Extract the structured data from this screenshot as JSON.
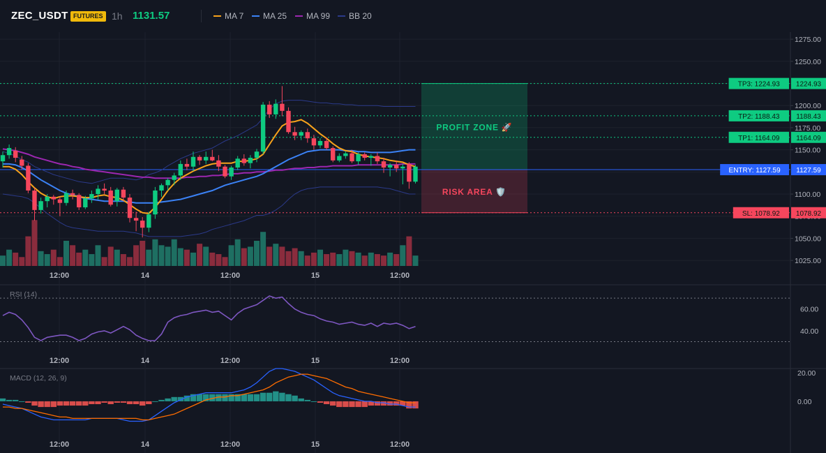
{
  "header": {
    "symbol": "ZEC_USDT",
    "badge": "FUTURES",
    "timeframe": "1h",
    "last_price": "1131.57",
    "indicators": [
      {
        "label": "MA 7",
        "color": "#f7a21b"
      },
      {
        "label": "MA 25",
        "color": "#3b82f6"
      },
      {
        "label": "MA 99",
        "color": "#9c27b0"
      },
      {
        "label": "BB 20",
        "color": "#2b3a8a"
      }
    ]
  },
  "price_axis": {
    "ticks": [
      "1275.00",
      "1250.00",
      "1225.00",
      "1200.00",
      "1175.00",
      "1150.00",
      "1125.00",
      "1100.00",
      "1075.00",
      "1050.00",
      "1025.00"
    ],
    "range": [
      1018,
      1283
    ]
  },
  "time_axis": {
    "labels": [
      "12:00",
      "14",
      "12:00",
      "15",
      "12:00"
    ]
  },
  "levels": [
    {
      "name": "tp3",
      "tag": "TP3: 1224.93",
      "value_label": "1224.93",
      "price": 1224.93,
      "color": "#0ecb81"
    },
    {
      "name": "tp2",
      "tag": "TP2: 1188.43",
      "value_label": "1188.43",
      "price": 1188.43,
      "color": "#0ecb81"
    },
    {
      "name": "tp1",
      "tag": "TP1: 1164.09",
      "value_label": "1164.09",
      "price": 1164.09,
      "color": "#0ecb81"
    },
    {
      "name": "entry",
      "tag": "ENTRY: 1127.59",
      "value_label": "1127.59",
      "price": 1127.59,
      "color": "#2962ff"
    },
    {
      "name": "sl",
      "tag": "SL: 1078.92",
      "value_label": "1078.92",
      "price": 1078.92,
      "color": "#f6465d"
    }
  ],
  "zones": {
    "profit_label": "PROFIT ZONE 🚀",
    "risk_label": "RISK AREA 🛡️"
  },
  "rsi": {
    "title": "RSI (14)",
    "ticks": [
      "60.00",
      "40.00"
    ],
    "range": [
      22,
      81
    ],
    "upper": 70,
    "lower": 30,
    "color": "#7e57c2"
  },
  "macd": {
    "title": "MACD (12, 26, 9)",
    "ticks": [
      "20.00",
      "0.00"
    ],
    "range": [
      -25,
      22
    ],
    "macd_color": "#2962ff",
    "signal_color": "#ff6d00"
  },
  "colors": {
    "up": "#0ecb81",
    "down": "#f6465d",
    "vol_up": "#1e6f62",
    "vol_down": "#8a2c3d"
  },
  "chart_data": {
    "type": "candlestick",
    "price": [
      {
        "o": 1137,
        "h": 1148,
        "l": 1130,
        "c": 1144
      },
      {
        "o": 1144,
        "h": 1156,
        "l": 1140,
        "c": 1152
      },
      {
        "o": 1149,
        "h": 1153,
        "l": 1136,
        "c": 1141
      },
      {
        "o": 1139,
        "h": 1143,
        "l": 1128,
        "c": 1132
      },
      {
        "o": 1132,
        "h": 1135,
        "l": 1101,
        "c": 1104
      },
      {
        "o": 1104,
        "h": 1107,
        "l": 1070,
        "c": 1082
      },
      {
        "o": 1082,
        "h": 1096,
        "l": 1078,
        "c": 1092
      },
      {
        "o": 1092,
        "h": 1100,
        "l": 1085,
        "c": 1097
      },
      {
        "o": 1097,
        "h": 1099,
        "l": 1088,
        "c": 1094
      },
      {
        "o": 1094,
        "h": 1097,
        "l": 1075,
        "c": 1090
      },
      {
        "o": 1090,
        "h": 1104,
        "l": 1087,
        "c": 1101
      },
      {
        "o": 1101,
        "h": 1105,
        "l": 1094,
        "c": 1099
      },
      {
        "o": 1099,
        "h": 1101,
        "l": 1082,
        "c": 1085
      },
      {
        "o": 1085,
        "h": 1098,
        "l": 1083,
        "c": 1095
      },
      {
        "o": 1095,
        "h": 1104,
        "l": 1090,
        "c": 1100
      },
      {
        "o": 1100,
        "h": 1110,
        "l": 1094,
        "c": 1106
      },
      {
        "o": 1106,
        "h": 1112,
        "l": 1100,
        "c": 1104
      },
      {
        "o": 1104,
        "h": 1108,
        "l": 1086,
        "c": 1088
      },
      {
        "o": 1092,
        "h": 1107,
        "l": 1086,
        "c": 1105
      },
      {
        "o": 1105,
        "h": 1108,
        "l": 1092,
        "c": 1096
      },
      {
        "o": 1096,
        "h": 1100,
        "l": 1068,
        "c": 1073
      },
      {
        "o": 1073,
        "h": 1080,
        "l": 1058,
        "c": 1070
      },
      {
        "o": 1070,
        "h": 1074,
        "l": 1051,
        "c": 1062
      },
      {
        "o": 1062,
        "h": 1080,
        "l": 1057,
        "c": 1077
      },
      {
        "o": 1077,
        "h": 1108,
        "l": 1072,
        "c": 1104
      },
      {
        "o": 1104,
        "h": 1112,
        "l": 1097,
        "c": 1110
      },
      {
        "o": 1110,
        "h": 1118,
        "l": 1104,
        "c": 1116
      },
      {
        "o": 1116,
        "h": 1124,
        "l": 1110,
        "c": 1121
      },
      {
        "o": 1121,
        "h": 1138,
        "l": 1116,
        "c": 1134
      },
      {
        "o": 1134,
        "h": 1140,
        "l": 1127,
        "c": 1131
      },
      {
        "o": 1131,
        "h": 1148,
        "l": 1126,
        "c": 1142
      },
      {
        "o": 1142,
        "h": 1144,
        "l": 1133,
        "c": 1138
      },
      {
        "o": 1138,
        "h": 1148,
        "l": 1134,
        "c": 1142
      },
      {
        "o": 1142,
        "h": 1150,
        "l": 1137,
        "c": 1138
      },
      {
        "o": 1138,
        "h": 1144,
        "l": 1126,
        "c": 1131
      },
      {
        "o": 1131,
        "h": 1133,
        "l": 1118,
        "c": 1120
      },
      {
        "o": 1120,
        "h": 1132,
        "l": 1116,
        "c": 1130
      },
      {
        "o": 1130,
        "h": 1143,
        "l": 1127,
        "c": 1140
      },
      {
        "o": 1140,
        "h": 1145,
        "l": 1132,
        "c": 1135
      },
      {
        "o": 1135,
        "h": 1144,
        "l": 1129,
        "c": 1141
      },
      {
        "o": 1141,
        "h": 1151,
        "l": 1136,
        "c": 1148
      },
      {
        "o": 1148,
        "h": 1204,
        "l": 1145,
        "c": 1201
      },
      {
        "o": 1201,
        "h": 1205,
        "l": 1186,
        "c": 1190
      },
      {
        "o": 1190,
        "h": 1207,
        "l": 1185,
        "c": 1202
      },
      {
        "o": 1202,
        "h": 1222,
        "l": 1188,
        "c": 1194
      },
      {
        "o": 1194,
        "h": 1198,
        "l": 1168,
        "c": 1170
      },
      {
        "o": 1170,
        "h": 1176,
        "l": 1161,
        "c": 1166
      },
      {
        "o": 1166,
        "h": 1172,
        "l": 1161,
        "c": 1170
      },
      {
        "o": 1170,
        "h": 1174,
        "l": 1158,
        "c": 1163
      },
      {
        "o": 1163,
        "h": 1167,
        "l": 1150,
        "c": 1155
      },
      {
        "o": 1155,
        "h": 1163,
        "l": 1152,
        "c": 1160
      },
      {
        "o": 1160,
        "h": 1164,
        "l": 1150,
        "c": 1152
      },
      {
        "o": 1152,
        "h": 1154,
        "l": 1136,
        "c": 1138
      },
      {
        "o": 1138,
        "h": 1146,
        "l": 1136,
        "c": 1143
      },
      {
        "o": 1143,
        "h": 1148,
        "l": 1140,
        "c": 1146
      },
      {
        "o": 1146,
        "h": 1150,
        "l": 1135,
        "c": 1137
      },
      {
        "o": 1137,
        "h": 1147,
        "l": 1133,
        "c": 1145
      },
      {
        "o": 1145,
        "h": 1147,
        "l": 1138,
        "c": 1141
      },
      {
        "o": 1141,
        "h": 1145,
        "l": 1132,
        "c": 1143
      },
      {
        "o": 1143,
        "h": 1147,
        "l": 1134,
        "c": 1137
      },
      {
        "o": 1137,
        "h": 1141,
        "l": 1124,
        "c": 1130
      },
      {
        "o": 1130,
        "h": 1135,
        "l": 1120,
        "c": 1133
      },
      {
        "o": 1133,
        "h": 1138,
        "l": 1125,
        "c": 1129
      },
      {
        "o": 1129,
        "h": 1134,
        "l": 1111,
        "c": 1131
      },
      {
        "o": 1134,
        "h": 1136,
        "l": 1106,
        "c": 1114
      },
      {
        "o": 1114,
        "h": 1133,
        "l": 1112,
        "c": 1131
      }
    ],
    "volume": [
      14,
      22,
      18,
      12,
      40,
      62,
      20,
      16,
      22,
      12,
      34,
      28,
      18,
      22,
      16,
      28,
      12,
      26,
      22,
      16,
      12,
      28,
      34,
      22,
      36,
      28,
      26,
      36,
      24,
      22,
      18,
      30,
      26,
      18,
      16,
      12,
      28,
      36,
      24,
      26,
      34,
      46,
      26,
      30,
      26,
      20,
      24,
      20,
      14,
      18,
      22,
      16,
      18,
      16,
      22,
      20,
      18,
      14,
      18,
      16,
      14,
      18,
      16,
      28,
      40,
      14
    ],
    "ma7": [
      1131,
      1131,
      1128,
      1122,
      1114,
      1107,
      1101,
      1097,
      1095,
      1097,
      1098,
      1098,
      1097,
      1096,
      1096,
      1098,
      1099,
      1097,
      1096,
      1093,
      1088,
      1083,
      1079,
      1078,
      1085,
      1094,
      1104,
      1112,
      1118,
      1122,
      1126,
      1129,
      1132,
      1134,
      1135,
      1135,
      1135,
      1137,
      1137,
      1138,
      1140,
      1145,
      1156,
      1167,
      1177,
      1181,
      1182,
      1184,
      1180,
      1174,
      1168,
      1163,
      1157,
      1152,
      1149,
      1148,
      1145,
      1143,
      1142,
      1141,
      1140,
      1138,
      1137,
      1136,
      1133,
      1131
    ],
    "ma25": [
      1134,
      1134,
      1133,
      1130,
      1126,
      1121,
      1116,
      1112,
      1108,
      1104,
      1101,
      1099,
      1097,
      1095,
      1094,
      1093,
      1092,
      1092,
      1092,
      1092,
      1091,
      1090,
      1090,
      1090,
      1090,
      1091,
      1092,
      1093,
      1094,
      1096,
      1098,
      1100,
      1102,
      1104,
      1107,
      1110,
      1112,
      1114,
      1116,
      1118,
      1120,
      1123,
      1127,
      1131,
      1135,
      1139,
      1142,
      1145,
      1148,
      1149,
      1150,
      1150,
      1150,
      1150,
      1149,
      1149,
      1148,
      1148,
      1147,
      1147,
      1147,
      1147,
      1148,
      1149,
      1150,
      1150
    ],
    "ma99": [
      1151,
      1150,
      1149,
      1147,
      1145,
      1142,
      1140,
      1138,
      1136,
      1134,
      1133,
      1131,
      1130,
      1128,
      1127,
      1126,
      1125,
      1124,
      1123,
      1122,
      1121,
      1120,
      1119,
      1119,
      1118,
      1118,
      1118,
      1118,
      1118,
      1119,
      1119,
      1120,
      1120,
      1121,
      1121,
      1122,
      1123,
      1123,
      1124,
      1124,
      1125,
      1125,
      1126,
      1127,
      1127,
      1128,
      1129,
      1129,
      1130,
      1130,
      1131,
      1131,
      1132,
      1132,
      1132,
      1132,
      1133,
      1133,
      1133,
      1133,
      1133,
      1133,
      1133,
      1134,
      1134,
      1134
    ],
    "bb_upper": [
      1148,
      1146,
      1143,
      1139,
      1136,
      1131,
      1128,
      1125,
      1122,
      1120,
      1118,
      1116,
      1114,
      1113,
      1112,
      1114,
      1116,
      1118,
      1118,
      1118,
      1117,
      1116,
      1118,
      1122,
      1124,
      1127,
      1132,
      1136,
      1140,
      1143,
      1146,
      1148,
      1150,
      1152,
      1156,
      1160,
      1163,
      1166,
      1170,
      1174,
      1178,
      1186,
      1196,
      1202,
      1205,
      1206,
      1206,
      1206,
      1205,
      1204,
      1203,
      1203,
      1202,
      1202,
      1201,
      1201,
      1200,
      1200,
      1200,
      1200,
      1199,
      1199,
      1199,
      1199,
      1199,
      1199
    ],
    "bb_lower": [
      1100,
      1099,
      1098,
      1097,
      1095,
      1090,
      1084,
      1078,
      1073,
      1068,
      1064,
      1062,
      1061,
      1060,
      1059,
      1058,
      1058,
      1058,
      1058,
      1058,
      1057,
      1056,
      1054,
      1052,
      1052,
      1052,
      1052,
      1052,
      1052,
      1053,
      1054,
      1055,
      1057,
      1060,
      1062,
      1064,
      1066,
      1068,
      1070,
      1073,
      1076,
      1076,
      1078,
      1082,
      1087,
      1094,
      1100,
      1104,
      1106,
      1107,
      1108,
      1108,
      1108,
      1108,
      1108,
      1108,
      1108,
      1108,
      1108,
      1108,
      1107,
      1106,
      1104,
      1102,
      1100,
      1100
    ],
    "rsi_values": [
      54,
      57,
      55,
      50,
      43,
      34,
      31,
      34,
      35,
      36,
      36,
      34,
      31,
      33,
      37,
      39,
      40,
      38,
      41,
      44,
      41,
      36,
      33,
      31,
      31,
      37,
      48,
      52,
      54,
      55,
      57,
      58,
      59,
      57,
      58,
      54,
      50,
      56,
      60,
      62,
      64,
      68,
      72,
      70,
      71,
      65,
      60,
      57,
      55,
      54,
      51,
      49,
      48,
      46,
      47,
      48,
      46,
      45,
      47,
      44,
      47,
      46,
      47,
      45,
      42,
      44
    ],
    "macd_hist": [
      2,
      1,
      1,
      0,
      -1,
      -3,
      -4,
      -4,
      -4,
      -3,
      -3,
      -3,
      -3,
      -3,
      -2,
      -2,
      -1,
      -2,
      -1,
      -1,
      -2,
      -2,
      -3,
      -2,
      0,
      1,
      2,
      3,
      3,
      4,
      5,
      5,
      5,
      5,
      5,
      5,
      5,
      5,
      5,
      5,
      5,
      6,
      6,
      7,
      6,
      5,
      4,
      2,
      1,
      0,
      -1,
      -2,
      -3,
      -4,
      -4,
      -4,
      -4,
      -4,
      -3,
      -3,
      -3,
      -3,
      -3,
      -3,
      -5,
      -5
    ],
    "macd_line": [
      -2,
      -3,
      -4,
      -5,
      -7,
      -9,
      -11,
      -12,
      -13,
      -13,
      -13,
      -13,
      -13,
      -13,
      -12,
      -12,
      -12,
      -12,
      -12,
      -13,
      -14,
      -14,
      -14,
      -13,
      -10,
      -7,
      -4,
      -1,
      1,
      3,
      4,
      5,
      6,
      6,
      6,
      6,
      6,
      7,
      8,
      10,
      13,
      17,
      21,
      23,
      23,
      22,
      21,
      19,
      17,
      15,
      12,
      9,
      6,
      4,
      3,
      2,
      1,
      0,
      0,
      -1,
      -1,
      -2,
      -2,
      -3,
      -4,
      -4
    ],
    "signal_line": [
      -4,
      -4,
      -5,
      -5,
      -6,
      -7,
      -8,
      -9,
      -10,
      -11,
      -11,
      -12,
      -12,
      -12,
      -12,
      -12,
      -12,
      -12,
      -12,
      -12,
      -12,
      -12,
      -13,
      -13,
      -12,
      -11,
      -10,
      -9,
      -7,
      -5,
      -3,
      -1,
      1,
      2,
      3,
      3,
      4,
      4,
      5,
      6,
      7,
      8,
      10,
      13,
      15,
      17,
      18,
      19,
      19,
      18,
      17,
      16,
      14,
      12,
      10,
      9,
      7,
      6,
      5,
      4,
      3,
      2,
      1,
      0,
      -1,
      -1
    ]
  }
}
